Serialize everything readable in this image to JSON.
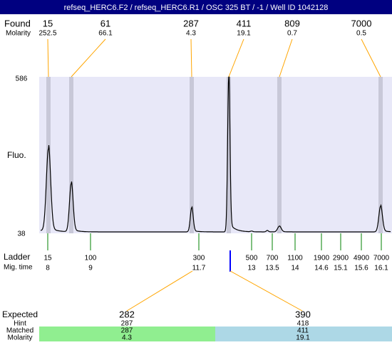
{
  "header": {
    "title": "refseq_HERC6.F2 / refseq_HERC6.R1 / OSC 325 BT / -1 / Well ID 1042128"
  },
  "found": {
    "label": "Found",
    "molarity_label": "Molarity",
    "peaks": [
      {
        "size": 15,
        "molarity": 252.5
      },
      {
        "size": 61,
        "molarity": 66.1
      },
      {
        "size": 287,
        "molarity": 4.3
      },
      {
        "size": 411,
        "molarity": 19.1
      },
      {
        "size": 809,
        "molarity": 0.7
      },
      {
        "size": 7000,
        "molarity": 0.5
      }
    ]
  },
  "plot": {
    "y_label": "Fluo.",
    "y_max": 586,
    "y_min": 38
  },
  "ladder": {
    "label": "Ladder",
    "time_label": "Mig. time",
    "entries": [
      {
        "size": 15,
        "time": 8
      },
      {
        "size": 100,
        "time": 9
      },
      {
        "size": 300,
        "time": 11.7
      },
      {
        "size": 500,
        "time": 13
      },
      {
        "size": 700,
        "time": 13.5
      },
      {
        "size": 1100,
        "time": 14
      },
      {
        "size": 1900,
        "time": 14.6
      },
      {
        "size": 2900,
        "time": 15.1
      },
      {
        "size": 4900,
        "time": 15.6
      },
      {
        "size": 7000,
        "time": 16.1
      }
    ]
  },
  "expected": {
    "label": "Expected",
    "hint_label": "Hint",
    "matched_label": "Matched",
    "molarity_label": "Molarity",
    "columns": [
      {
        "expected": 282,
        "hint": 287,
        "matched": 287,
        "molarity": 4.3
      },
      {
        "expected": 390,
        "hint": 418,
        "matched": 411,
        "molarity": 19.1
      }
    ]
  }
}
